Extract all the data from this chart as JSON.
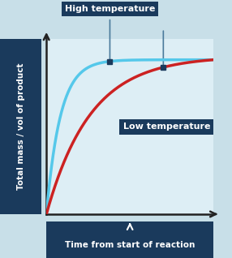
{
  "bg_color": "#c8dfe8",
  "plot_bg_color": "#ddeef5",
  "grid_color": "#b8d4e0",
  "axis_color": "#222222",
  "high_temp_color": "#55c8ea",
  "low_temp_color": "#cc2222",
  "annotation_box_color": "#1a3a5c",
  "annotation_text_color": "#ffffff",
  "ylabel": "Total mass / vol of product",
  "xlabel": "Time from start of reaction",
  "high_label": "High temperature",
  "low_label": "Low temperature",
  "label_box_color": "#1a3a5c",
  "figsize": [
    2.86,
    3.18
  ],
  "dpi": 100,
  "line_color": "#4a7a9b",
  "marker_color": "#1a3a5c"
}
